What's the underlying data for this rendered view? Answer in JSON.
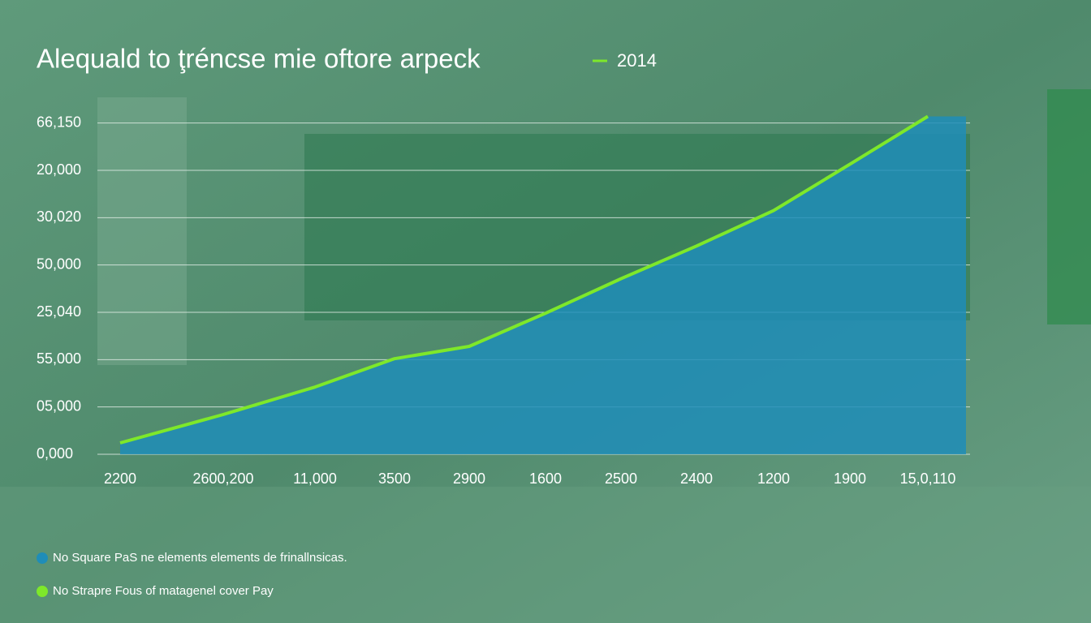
{
  "chart_data": {
    "type": "line",
    "title": "Alequald to ţréncse mie oftore arpeck",
    "categories": [
      "2200",
      "2600,200",
      "11,000",
      "3500",
      "2900",
      "1600",
      "2500",
      "2400",
      "1200",
      "1900",
      "15,0,110"
    ],
    "series": [
      {
        "name": "2014",
        "color": "#7ee82a",
        "area_color": "#1f8db8",
        "values": [
          0.24,
          0.84,
          1.42,
          2.02,
          2.28,
          2.98,
          3.71,
          4.4,
          5.15,
          6.13,
          7.14
        ]
      }
    ],
    "ylim": [
      0,
      7.2
    ],
    "yticks": [
      {
        "value": 0,
        "label": "0,000"
      },
      {
        "value": 1,
        "label": "05,000"
      },
      {
        "value": 2,
        "label": "55,000"
      },
      {
        "value": 3,
        "label": "25,040"
      },
      {
        "value": 4,
        "label": "50,000"
      },
      {
        "value": 5,
        "label": "30,020"
      },
      {
        "value": 6,
        "label": "20,000"
      },
      {
        "value": 7,
        "label": "66,150"
      }
    ],
    "grid": true,
    "notes": [
      {
        "text": "No Square PaS ne elements elements de frinallnsicas.",
        "color": "#1f8db8"
      },
      {
        "text": "No Strapre Fous of matagenel cover Pay",
        "color": "#7ee82a"
      }
    ]
  }
}
